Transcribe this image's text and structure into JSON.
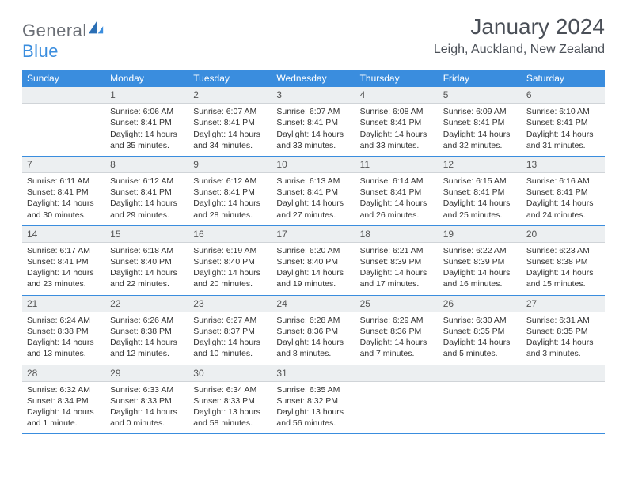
{
  "brand": {
    "part1": "General",
    "part2": "Blue"
  },
  "title": "January 2024",
  "location": "Leigh, Auckland, New Zealand",
  "colors": {
    "header_bg": "#3a8dde",
    "header_text": "#ffffff",
    "daynum_bg": "#eceff1",
    "border": "#3a8dde",
    "body_text": "#333333",
    "title_text": "#4a4f57",
    "logo_gray": "#6b6f76",
    "logo_blue": "#3a8dde",
    "page_bg": "#ffffff"
  },
  "weekdays": [
    "Sunday",
    "Monday",
    "Tuesday",
    "Wednesday",
    "Thursday",
    "Friday",
    "Saturday"
  ],
  "weeks": [
    [
      null,
      {
        "n": "1",
        "sr": "Sunrise: 6:06 AM",
        "ss": "Sunset: 8:41 PM",
        "dl": "Daylight: 14 hours and 35 minutes."
      },
      {
        "n": "2",
        "sr": "Sunrise: 6:07 AM",
        "ss": "Sunset: 8:41 PM",
        "dl": "Daylight: 14 hours and 34 minutes."
      },
      {
        "n": "3",
        "sr": "Sunrise: 6:07 AM",
        "ss": "Sunset: 8:41 PM",
        "dl": "Daylight: 14 hours and 33 minutes."
      },
      {
        "n": "4",
        "sr": "Sunrise: 6:08 AM",
        "ss": "Sunset: 8:41 PM",
        "dl": "Daylight: 14 hours and 33 minutes."
      },
      {
        "n": "5",
        "sr": "Sunrise: 6:09 AM",
        "ss": "Sunset: 8:41 PM",
        "dl": "Daylight: 14 hours and 32 minutes."
      },
      {
        "n": "6",
        "sr": "Sunrise: 6:10 AM",
        "ss": "Sunset: 8:41 PM",
        "dl": "Daylight: 14 hours and 31 minutes."
      }
    ],
    [
      {
        "n": "7",
        "sr": "Sunrise: 6:11 AM",
        "ss": "Sunset: 8:41 PM",
        "dl": "Daylight: 14 hours and 30 minutes."
      },
      {
        "n": "8",
        "sr": "Sunrise: 6:12 AM",
        "ss": "Sunset: 8:41 PM",
        "dl": "Daylight: 14 hours and 29 minutes."
      },
      {
        "n": "9",
        "sr": "Sunrise: 6:12 AM",
        "ss": "Sunset: 8:41 PM",
        "dl": "Daylight: 14 hours and 28 minutes."
      },
      {
        "n": "10",
        "sr": "Sunrise: 6:13 AM",
        "ss": "Sunset: 8:41 PM",
        "dl": "Daylight: 14 hours and 27 minutes."
      },
      {
        "n": "11",
        "sr": "Sunrise: 6:14 AM",
        "ss": "Sunset: 8:41 PM",
        "dl": "Daylight: 14 hours and 26 minutes."
      },
      {
        "n": "12",
        "sr": "Sunrise: 6:15 AM",
        "ss": "Sunset: 8:41 PM",
        "dl": "Daylight: 14 hours and 25 minutes."
      },
      {
        "n": "13",
        "sr": "Sunrise: 6:16 AM",
        "ss": "Sunset: 8:41 PM",
        "dl": "Daylight: 14 hours and 24 minutes."
      }
    ],
    [
      {
        "n": "14",
        "sr": "Sunrise: 6:17 AM",
        "ss": "Sunset: 8:41 PM",
        "dl": "Daylight: 14 hours and 23 minutes."
      },
      {
        "n": "15",
        "sr": "Sunrise: 6:18 AM",
        "ss": "Sunset: 8:40 PM",
        "dl": "Daylight: 14 hours and 22 minutes."
      },
      {
        "n": "16",
        "sr": "Sunrise: 6:19 AM",
        "ss": "Sunset: 8:40 PM",
        "dl": "Daylight: 14 hours and 20 minutes."
      },
      {
        "n": "17",
        "sr": "Sunrise: 6:20 AM",
        "ss": "Sunset: 8:40 PM",
        "dl": "Daylight: 14 hours and 19 minutes."
      },
      {
        "n": "18",
        "sr": "Sunrise: 6:21 AM",
        "ss": "Sunset: 8:39 PM",
        "dl": "Daylight: 14 hours and 17 minutes."
      },
      {
        "n": "19",
        "sr": "Sunrise: 6:22 AM",
        "ss": "Sunset: 8:39 PM",
        "dl": "Daylight: 14 hours and 16 minutes."
      },
      {
        "n": "20",
        "sr": "Sunrise: 6:23 AM",
        "ss": "Sunset: 8:38 PM",
        "dl": "Daylight: 14 hours and 15 minutes."
      }
    ],
    [
      {
        "n": "21",
        "sr": "Sunrise: 6:24 AM",
        "ss": "Sunset: 8:38 PM",
        "dl": "Daylight: 14 hours and 13 minutes."
      },
      {
        "n": "22",
        "sr": "Sunrise: 6:26 AM",
        "ss": "Sunset: 8:38 PM",
        "dl": "Daylight: 14 hours and 12 minutes."
      },
      {
        "n": "23",
        "sr": "Sunrise: 6:27 AM",
        "ss": "Sunset: 8:37 PM",
        "dl": "Daylight: 14 hours and 10 minutes."
      },
      {
        "n": "24",
        "sr": "Sunrise: 6:28 AM",
        "ss": "Sunset: 8:36 PM",
        "dl": "Daylight: 14 hours and 8 minutes."
      },
      {
        "n": "25",
        "sr": "Sunrise: 6:29 AM",
        "ss": "Sunset: 8:36 PM",
        "dl": "Daylight: 14 hours and 7 minutes."
      },
      {
        "n": "26",
        "sr": "Sunrise: 6:30 AM",
        "ss": "Sunset: 8:35 PM",
        "dl": "Daylight: 14 hours and 5 minutes."
      },
      {
        "n": "27",
        "sr": "Sunrise: 6:31 AM",
        "ss": "Sunset: 8:35 PM",
        "dl": "Daylight: 14 hours and 3 minutes."
      }
    ],
    [
      {
        "n": "28",
        "sr": "Sunrise: 6:32 AM",
        "ss": "Sunset: 8:34 PM",
        "dl": "Daylight: 14 hours and 1 minute."
      },
      {
        "n": "29",
        "sr": "Sunrise: 6:33 AM",
        "ss": "Sunset: 8:33 PM",
        "dl": "Daylight: 14 hours and 0 minutes."
      },
      {
        "n": "30",
        "sr": "Sunrise: 6:34 AM",
        "ss": "Sunset: 8:33 PM",
        "dl": "Daylight: 13 hours and 58 minutes."
      },
      {
        "n": "31",
        "sr": "Sunrise: 6:35 AM",
        "ss": "Sunset: 8:32 PM",
        "dl": "Daylight: 13 hours and 56 minutes."
      },
      null,
      null,
      null
    ]
  ]
}
